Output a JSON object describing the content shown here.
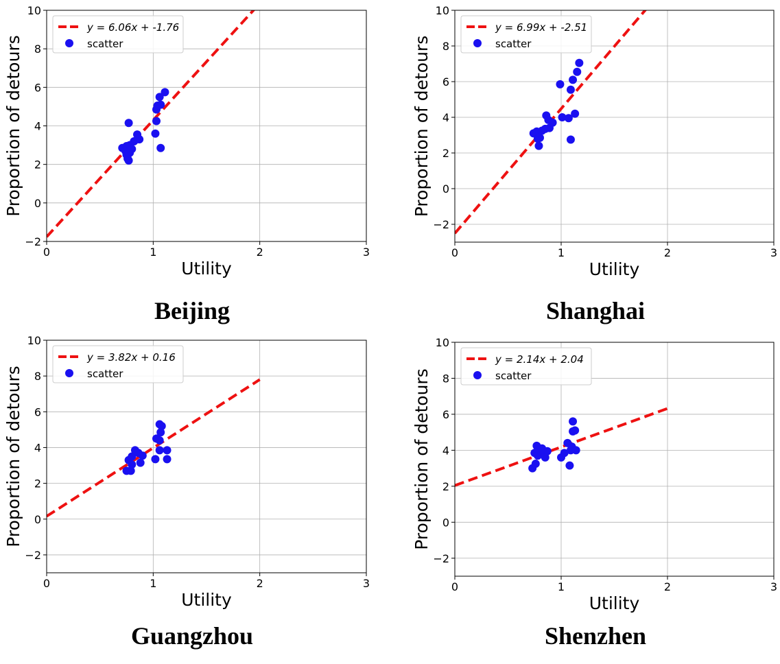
{
  "chart_data": [
    {
      "type": "scatter",
      "title": "Beijing",
      "xlabel": "Utility",
      "ylabel": "Proportion of detours",
      "xlim": [
        0,
        3
      ],
      "ylim": [
        -2,
        10
      ],
      "xticks": [
        "0",
        "1",
        "2",
        "3"
      ],
      "yticks": [
        "−2",
        "0",
        "2",
        "4",
        "6",
        "8",
        "10"
      ],
      "grid": true,
      "legend_position": "top-left",
      "fit": {
        "label": "y = 6.06x + -1.76",
        "slope": 6.06,
        "intercept": -1.76,
        "x_range": [
          0,
          2.0
        ],
        "color": "#ee1111"
      },
      "series": [
        {
          "name": "scatter",
          "color": "#1a10f0",
          "points": [
            [
              0.71,
              2.85
            ],
            [
              0.74,
              2.7
            ],
            [
              0.75,
              2.5
            ],
            [
              0.76,
              2.3
            ],
            [
              0.77,
              2.2
            ],
            [
              0.78,
              2.6
            ],
            [
              0.75,
              2.95
            ],
            [
              0.78,
              3.0
            ],
            [
              0.8,
              2.8
            ],
            [
              0.77,
              4.15
            ],
            [
              0.82,
              3.2
            ],
            [
              0.85,
              3.55
            ],
            [
              0.87,
              3.3
            ],
            [
              1.02,
              3.6
            ],
            [
              1.03,
              4.25
            ],
            [
              1.03,
              4.85
            ],
            [
              1.04,
              5.05
            ],
            [
              1.06,
              5.5
            ],
            [
              1.07,
              5.1
            ],
            [
              1.07,
              2.85
            ],
            [
              1.11,
              5.75
            ]
          ]
        }
      ]
    },
    {
      "type": "scatter",
      "title": "Shanghai",
      "xlabel": "Utility",
      "ylabel": "Proportion of detours",
      "xlim": [
        0,
        3
      ],
      "ylim": [
        -3,
        10
      ],
      "xticks": [
        "0",
        "1",
        "2",
        "3"
      ],
      "yticks": [
        "−2",
        "0",
        "2",
        "4",
        "6",
        "8",
        "10"
      ],
      "grid": true,
      "legend_position": "top-left",
      "fit": {
        "label": "y = 6.99x + -2.51",
        "slope": 6.99,
        "intercept": -2.51,
        "x_range": [
          0,
          1.8
        ],
        "color": "#ee1111"
      },
      "series": [
        {
          "name": "scatter",
          "color": "#1a10f0",
          "points": [
            [
              0.74,
              3.1
            ],
            [
              0.77,
              3.2
            ],
            [
              0.78,
              2.8
            ],
            [
              0.79,
              2.4
            ],
            [
              0.8,
              2.85
            ],
            [
              0.82,
              3.25
            ],
            [
              0.85,
              3.35
            ],
            [
              0.86,
              4.1
            ],
            [
              0.88,
              3.85
            ],
            [
              0.89,
              3.4
            ],
            [
              0.92,
              3.7
            ],
            [
              0.99,
              5.85
            ],
            [
              1.01,
              4.0
            ],
            [
              1.07,
              3.95
            ],
            [
              1.09,
              2.75
            ],
            [
              1.09,
              5.55
            ],
            [
              1.11,
              6.1
            ],
            [
              1.13,
              4.2
            ],
            [
              1.15,
              6.55
            ],
            [
              1.17,
              7.05
            ]
          ]
        }
      ]
    },
    {
      "type": "scatter",
      "title": "Guangzhou",
      "xlabel": "Utility",
      "ylabel": "Proportion of detours",
      "xlim": [
        0,
        3
      ],
      "ylim": [
        -3,
        10
      ],
      "xticks": [
        "0",
        "1",
        "2",
        "3"
      ],
      "yticks": [
        "−2",
        "0",
        "2",
        "4",
        "6",
        "8",
        "10"
      ],
      "grid": true,
      "legend_position": "top-left",
      "fit": {
        "label": "y = 3.82x + 0.16",
        "slope": 3.82,
        "intercept": 0.16,
        "x_range": [
          0,
          2.0
        ],
        "color": "#ee1111"
      },
      "series": [
        {
          "name": "scatter",
          "color": "#1a10f0",
          "points": [
            [
              0.75,
              2.7
            ],
            [
              0.77,
              3.3
            ],
            [
              0.79,
              2.7
            ],
            [
              0.8,
              3.05
            ],
            [
              0.8,
              3.5
            ],
            [
              0.83,
              3.85
            ],
            [
              0.86,
              3.7
            ],
            [
              0.88,
              3.15
            ],
            [
              0.9,
              3.55
            ],
            [
              1.02,
              3.35
            ],
            [
              1.03,
              4.5
            ],
            [
              1.06,
              5.3
            ],
            [
              1.06,
              4.4
            ],
            [
              1.06,
              3.85
            ],
            [
              1.07,
              4.85
            ],
            [
              1.08,
              5.2
            ],
            [
              1.13,
              3.35
            ],
            [
              1.13,
              3.85
            ]
          ]
        }
      ]
    },
    {
      "type": "scatter",
      "title": "Shenzhen",
      "xlabel": "Utility",
      "ylabel": "Proportion of detours",
      "xlim": [
        0,
        3
      ],
      "ylim": [
        -3,
        10
      ],
      "xticks": [
        "0",
        "1",
        "2",
        "3"
      ],
      "yticks": [
        "−2",
        "0",
        "2",
        "4",
        "6",
        "8",
        "10"
      ],
      "grid": true,
      "legend_position": "top-left",
      "fit": {
        "label": "y = 2.14x + 2.04",
        "slope": 2.14,
        "intercept": 2.04,
        "x_range": [
          0,
          2.0
        ],
        "color": "#ee1111"
      },
      "series": [
        {
          "name": "scatter",
          "color": "#1a10f0",
          "points": [
            [
              0.73,
              3.0
            ],
            [
              0.75,
              3.85
            ],
            [
              0.76,
              3.25
            ],
            [
              0.77,
              4.25
            ],
            [
              0.78,
              3.7
            ],
            [
              0.8,
              4.0
            ],
            [
              0.82,
              4.1
            ],
            [
              0.84,
              3.85
            ],
            [
              0.85,
              3.6
            ],
            [
              0.87,
              3.95
            ],
            [
              1.0,
              3.6
            ],
            [
              1.03,
              3.85
            ],
            [
              1.06,
              4.4
            ],
            [
              1.08,
              3.15
            ],
            [
              1.09,
              4.0
            ],
            [
              1.1,
              4.2
            ],
            [
              1.11,
              5.05
            ],
            [
              1.11,
              5.6
            ],
            [
              1.13,
              5.1
            ],
            [
              1.14,
              4.0
            ]
          ]
        }
      ]
    }
  ]
}
